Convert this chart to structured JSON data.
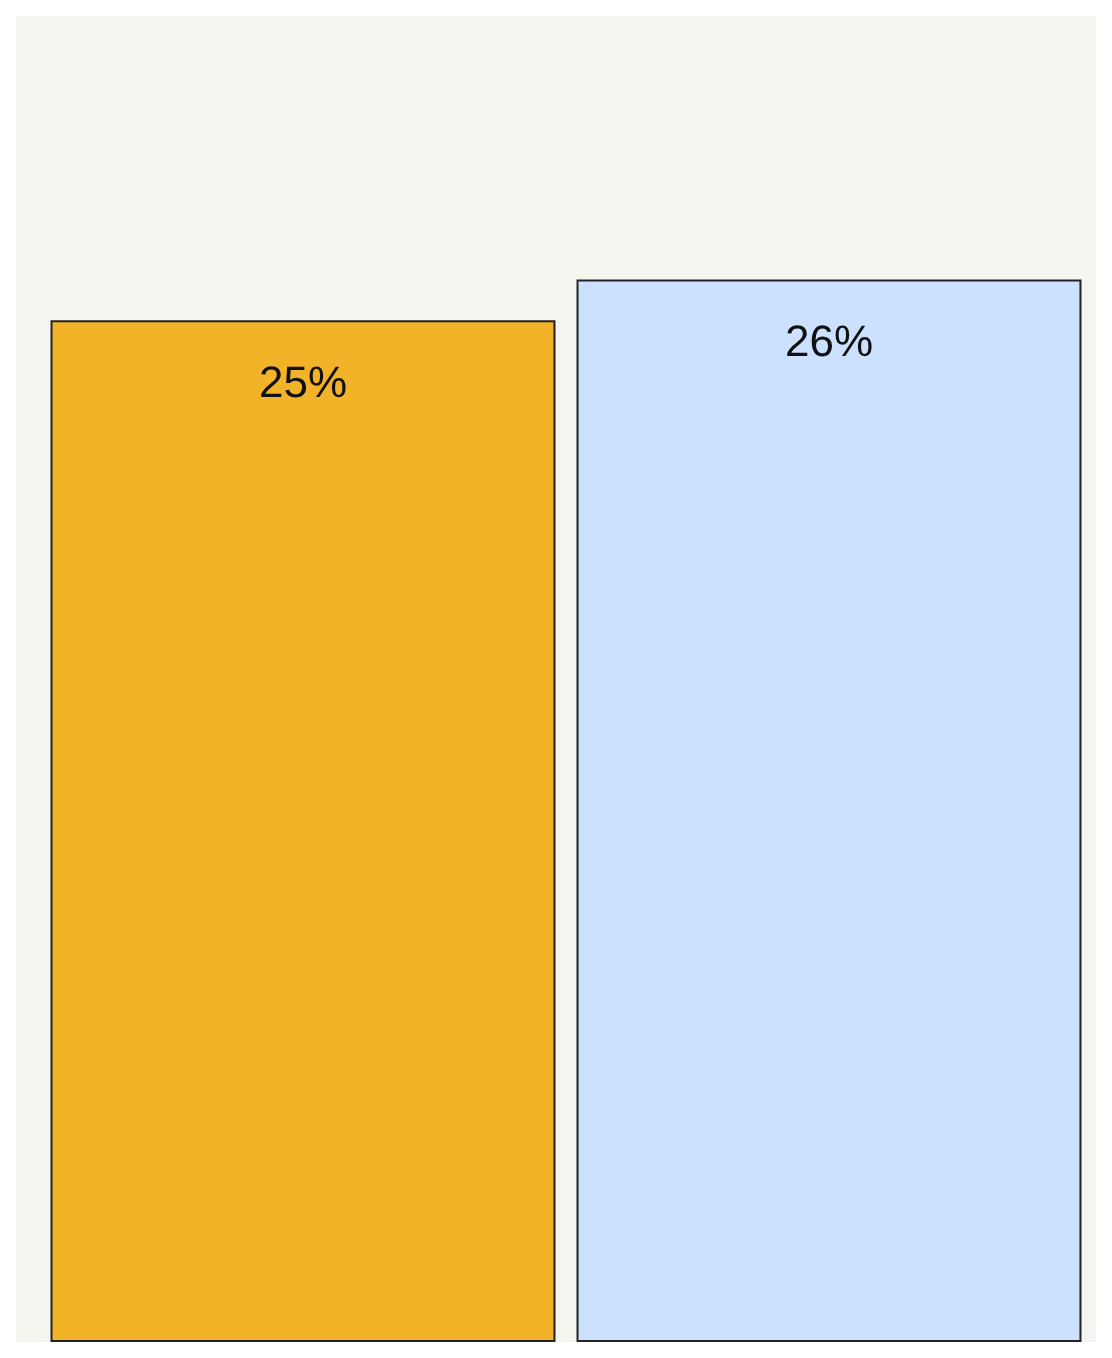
{
  "chart_data": {
    "type": "bar",
    "categories": [
      null,
      null
    ],
    "values": [
      25,
      26
    ],
    "value_labels": [
      "25%",
      "26%"
    ],
    "colors": [
      "#f2b328",
      "#cce0ff"
    ]
  }
}
